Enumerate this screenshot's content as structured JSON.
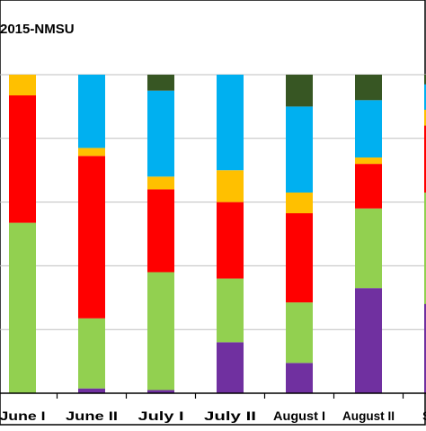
{
  "chart_data": {
    "type": "bar",
    "stacked": true,
    "percent": true,
    "title": "2015-NMSU",
    "xlabel": "",
    "ylabel": "",
    "ylim": [
      0,
      100
    ],
    "grid": true,
    "categories": [
      "June I",
      "June II",
      "July I",
      "July II",
      "August I",
      "August II",
      "Sept"
    ],
    "series": [
      {
        "color": "#7030A0",
        "values": [
          0,
          1.5,
          1,
          16,
          9.5,
          33,
          28
        ]
      },
      {
        "color": "#92D050",
        "values": [
          53.5,
          22,
          37,
          20,
          19,
          25,
          35
        ]
      },
      {
        "color": "#FF0000",
        "values": [
          40,
          51,
          26,
          24,
          28,
          14,
          21
        ]
      },
      {
        "color": "#FFC000",
        "values": [
          6.5,
          2.5,
          4,
          10,
          6.5,
          2,
          5
        ]
      },
      {
        "color": "#00B0F0",
        "values": [
          0,
          23,
          27,
          30,
          27,
          18,
          8
        ]
      },
      {
        "color": "#375623",
        "values": [
          0,
          0,
          5,
          0,
          10,
          8,
          3
        ]
      }
    ]
  }
}
